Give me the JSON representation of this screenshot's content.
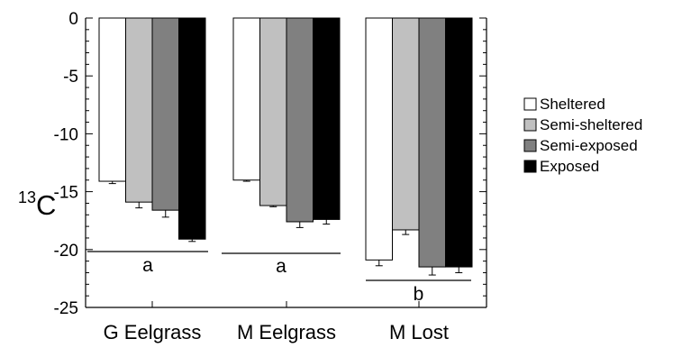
{
  "chart_data": {
    "type": "bar",
    "title": "",
    "xlabel": "",
    "ylabel": "13C",
    "ylabel_parts": {
      "superscript": "13",
      "main": "C"
    },
    "ylim": [
      -25,
      0
    ],
    "yticks": [
      0,
      -5,
      -10,
      -15,
      -20,
      -25
    ],
    "ytick_labels": [
      "0",
      "-5",
      "-10",
      "-15",
      "-20",
      "-25"
    ],
    "categories": [
      "G Eelgrass",
      "M Eelgrass",
      "M Lost"
    ],
    "series": [
      {
        "name": "Sheltered",
        "color": "#ffffff",
        "values": [
          -14.1,
          -14.0,
          -20.9
        ],
        "errors": [
          0.2,
          0.1,
          0.5
        ]
      },
      {
        "name": "Semi-sheltered",
        "color": "#c0c0c0",
        "values": [
          -15.9,
          -16.2,
          -18.3
        ],
        "errors": [
          0.5,
          0.1,
          0.4
        ]
      },
      {
        "name": "Semi-exposed",
        "color": "#808080",
        "values": [
          -16.6,
          -17.6,
          -21.5
        ],
        "errors": [
          0.6,
          0.5,
          0.7
        ]
      },
      {
        "name": "Exposed",
        "color": "#000000",
        "values": [
          -19.1,
          -17.4,
          -21.5
        ],
        "errors": [
          0.2,
          0.4,
          0.5
        ]
      }
    ],
    "group_labels": [
      "a",
      "a",
      "b"
    ],
    "legend_position": "right",
    "grid": false
  }
}
